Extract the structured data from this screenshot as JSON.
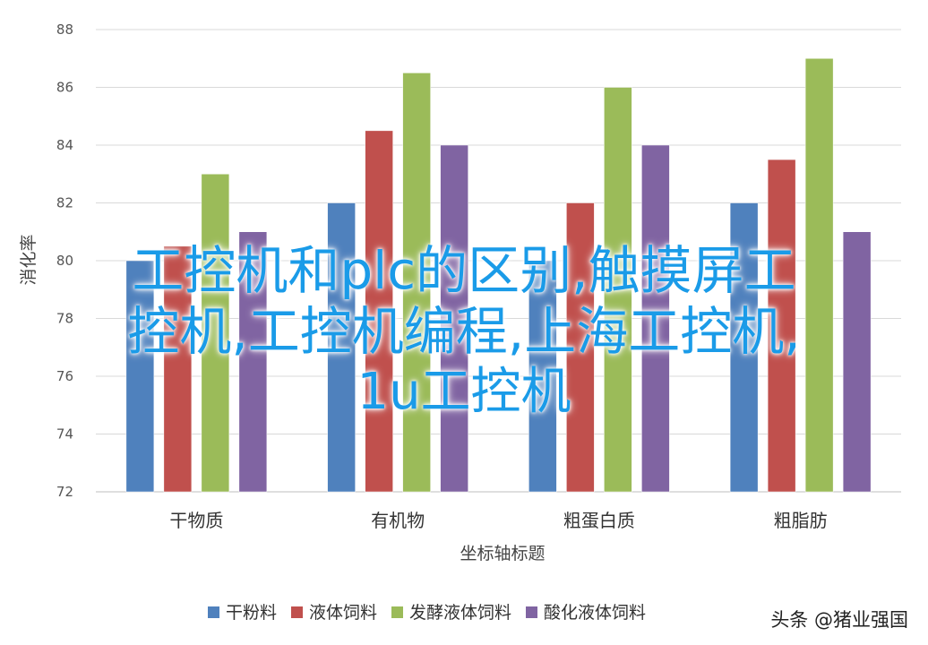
{
  "chart_data": {
    "type": "bar",
    "categories": [
      "干物质",
      "有机物",
      "粗蛋白质",
      "粗脂肪"
    ],
    "series": [
      {
        "name": "干粉料",
        "color": "#4f81bd",
        "values": [
          80,
          82,
          80,
          82
        ]
      },
      {
        "name": "液体饲料",
        "color": "#c0504d",
        "values": [
          80.5,
          84.5,
          82,
          83.5
        ]
      },
      {
        "name": "发酵液体饲料",
        "color": "#9bbb59",
        "values": [
          83,
          86.5,
          86,
          87
        ]
      },
      {
        "name": "酸化液体饲料",
        "color": "#8064a2",
        "values": [
          81,
          84,
          84,
          81
        ]
      }
    ],
    "xlabel": "坐标轴标题",
    "ylabel": "消化率",
    "ylim": [
      72,
      88
    ],
    "yticks": [
      72,
      74,
      76,
      78,
      80,
      82,
      84,
      86,
      88
    ],
    "grid": true,
    "legend": "bottom"
  },
  "overlay": {
    "line1": "工控机和plc的区别,触摸屏工",
    "line2": "控机,工控机编程,上海工控机,",
    "line3": "1u工控机"
  },
  "watermark": "头条 @猪业强国"
}
